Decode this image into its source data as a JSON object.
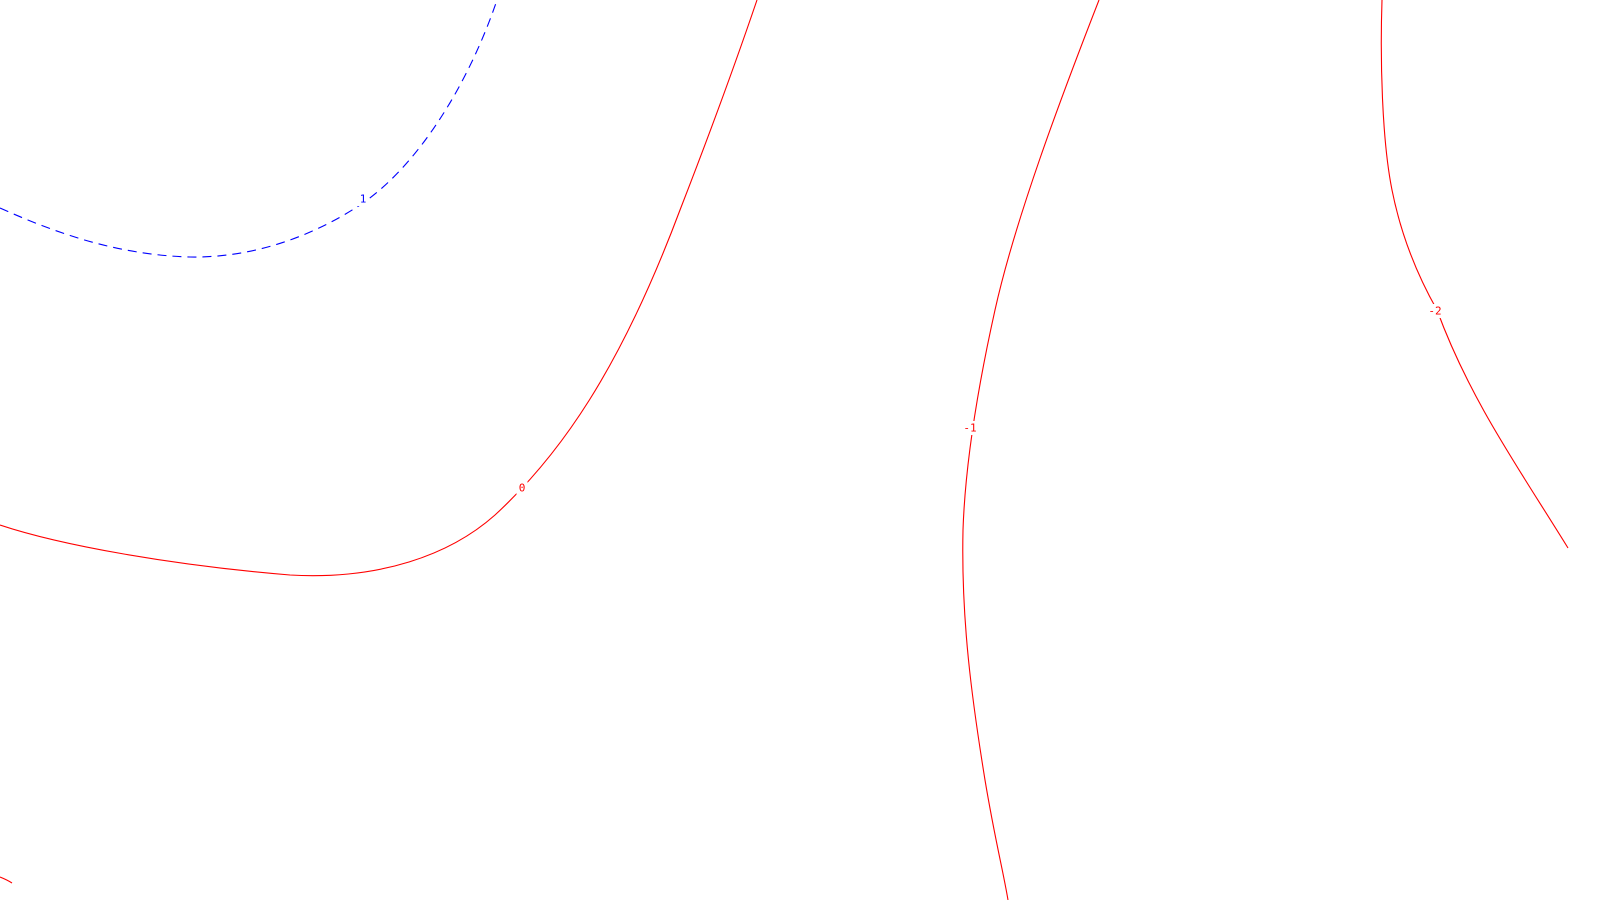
{
  "chart_data": {
    "type": "contour",
    "title": "",
    "xlabel": "",
    "ylabel": "",
    "grid": false,
    "legend": false,
    "colors": {
      "positive": "#0000ff",
      "zero_and_negative": "#ff0000",
      "background": "#ffffff"
    },
    "contours": [
      {
        "level": 1,
        "label": "1",
        "color": "#0000ff",
        "line_style": "dashed"
      },
      {
        "level": 0,
        "label": "0",
        "color": "#ff0000",
        "line_style": "solid"
      },
      {
        "level": -1,
        "label": "-1",
        "color": "#ff0000",
        "line_style": "solid"
      },
      {
        "level": -2,
        "label": "-2",
        "color": "#ff0000",
        "line_style": "solid"
      }
    ]
  }
}
